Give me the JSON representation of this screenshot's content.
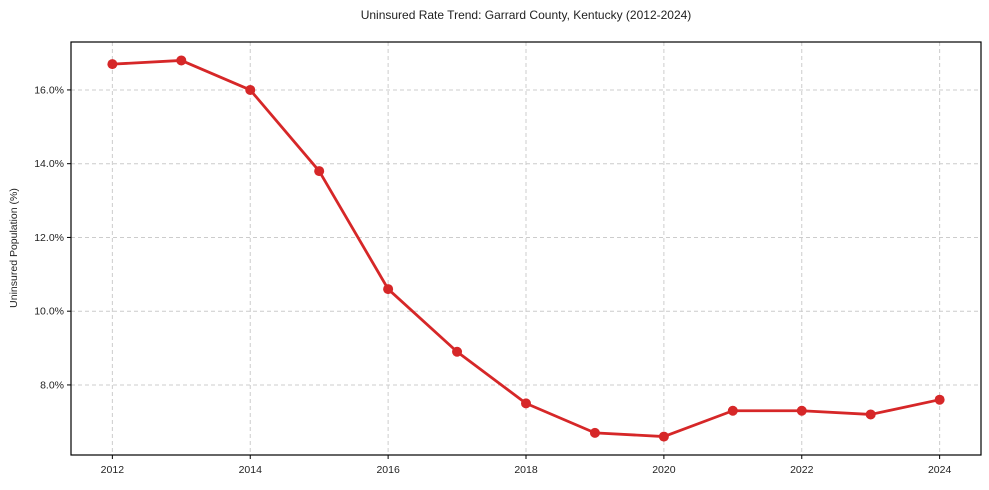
{
  "chart_data": {
    "type": "line",
    "title": "Uninsured Rate Trend: Garrard County, Kentucky (2012-2024)",
    "xlabel": "",
    "ylabel": "Uninsured Population (%)",
    "x": [
      2012,
      2013,
      2014,
      2015,
      2016,
      2017,
      2018,
      2019,
      2020,
      2021,
      2022,
      2023,
      2024
    ],
    "series": [
      {
        "name": "Uninsured rate",
        "values": [
          16.7,
          16.8,
          16.0,
          13.8,
          10.6,
          8.9,
          7.5,
          6.7,
          6.6,
          7.3,
          7.3,
          7.2,
          7.6
        ]
      }
    ],
    "xticks": {
      "values": [
        2012,
        2014,
        2016,
        2018,
        2020,
        2022,
        2024
      ],
      "labels": [
        "2012",
        "2014",
        "2016",
        "2018",
        "2020",
        "2022",
        "2024"
      ]
    },
    "yticks": {
      "values": [
        8,
        10,
        12,
        14,
        16
      ],
      "labels": [
        "8.0%",
        "10.0%",
        "12.0%",
        "14.0%",
        "16.0%"
      ]
    },
    "xlim": [
      2011.4,
      2024.6
    ],
    "ylim": [
      6.1,
      17.3
    ],
    "grid": true,
    "legend": "none",
    "colors": {
      "line": "#d62728",
      "marker": "#d62728",
      "grid": "#cccccc",
      "axis": "#000000",
      "text": "#1f1f1f",
      "background": "#ffffff"
    }
  }
}
